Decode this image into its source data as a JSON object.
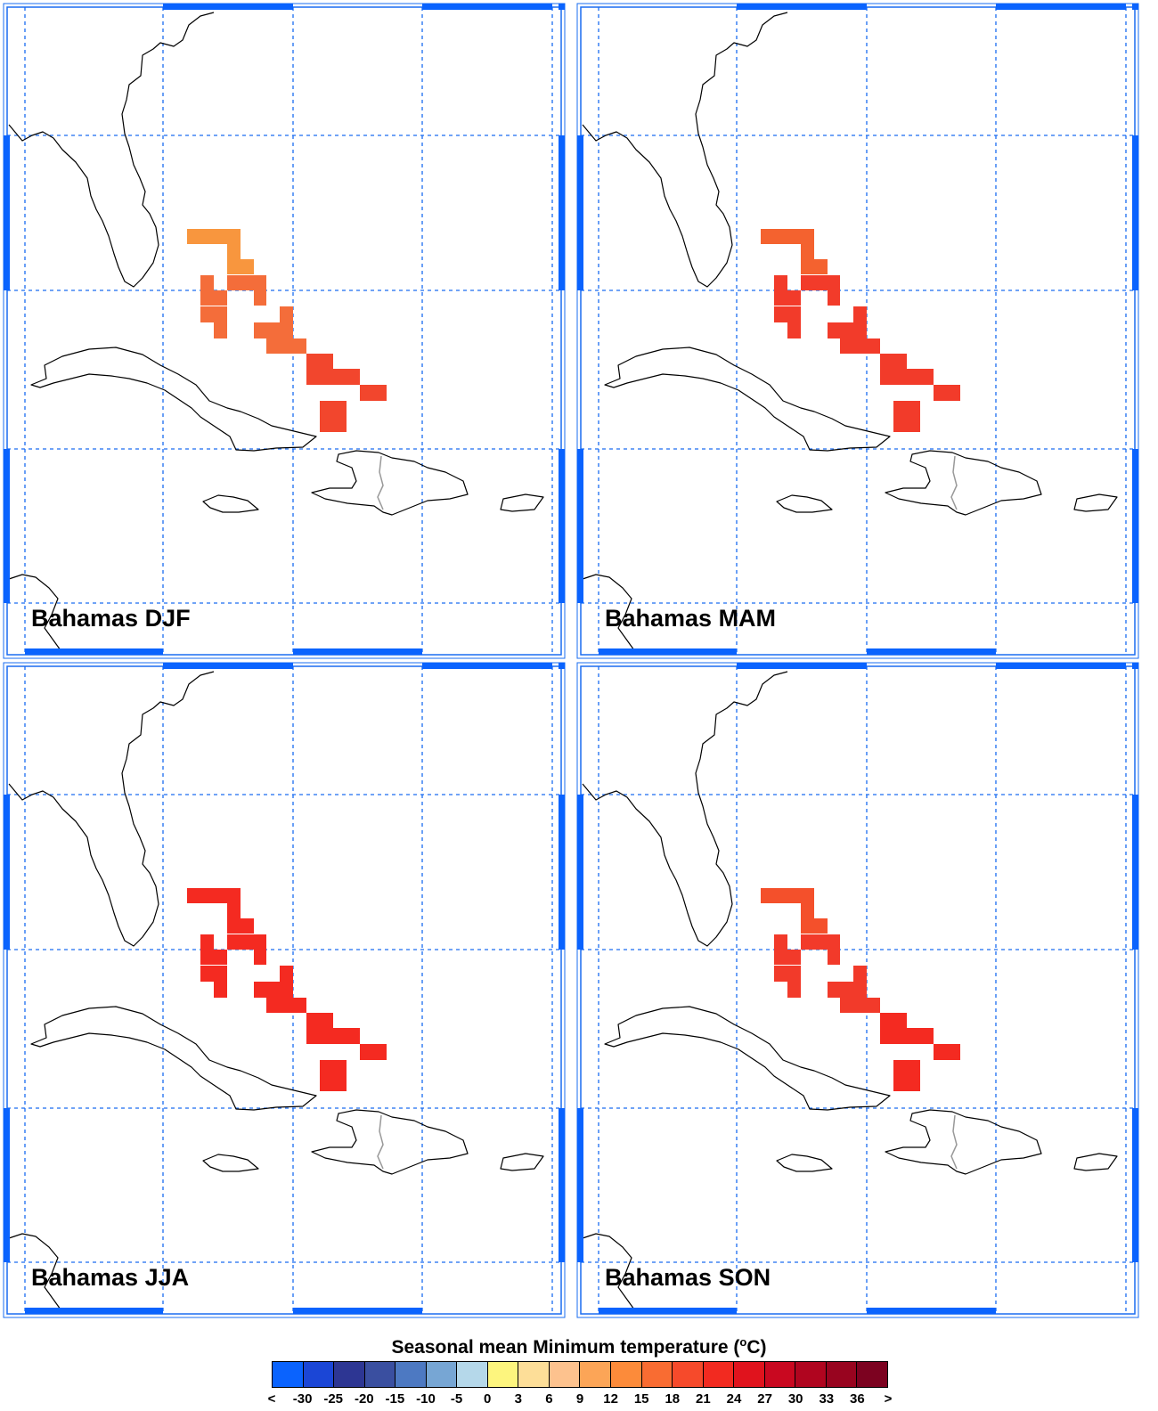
{
  "panels": [
    {
      "label": "Bahamas DJF",
      "colors": {
        "north": "#f8963e",
        "mid": "#f46d3a",
        "south": "#f2462d"
      }
    },
    {
      "label": "Bahamas MAM",
      "colors": {
        "north": "#f4622f",
        "mid": "#f23b2a",
        "south": "#f23b2a"
      }
    },
    {
      "label": "Bahamas JJA",
      "colors": {
        "north": "#f42a21",
        "mid": "#f42a21",
        "south": "#f42a21"
      }
    },
    {
      "label": "Bahamas SON",
      "colors": {
        "north": "#f4502b",
        "mid": "#f23a2a",
        "south": "#f42a21"
      }
    }
  ],
  "legend": {
    "title": "Seasonal mean Minimum temperature (",
    "unit_sup": "o",
    "unit_end": "C)",
    "colors": [
      "#0a63fe",
      "#1b46d6",
      "#2d3693",
      "#3a4fa0",
      "#4d79c2",
      "#77a6d4",
      "#b5d8ea",
      "#fdf57e",
      "#fdde98",
      "#fdc28e",
      "#fca557",
      "#fc8b3a",
      "#f96c32",
      "#f64a2b",
      "#f22a20",
      "#e0131d",
      "#c90820",
      "#b0051f",
      "#98041f",
      "#7c0220"
    ],
    "ticks": [
      "<",
      "-30",
      "-25",
      "-20",
      "-15",
      "-10",
      "-5",
      "0",
      "3",
      "6",
      "9",
      "12",
      "15",
      "18",
      "21",
      "24",
      "27",
      "30",
      "33",
      "36",
      ">"
    ]
  }
}
